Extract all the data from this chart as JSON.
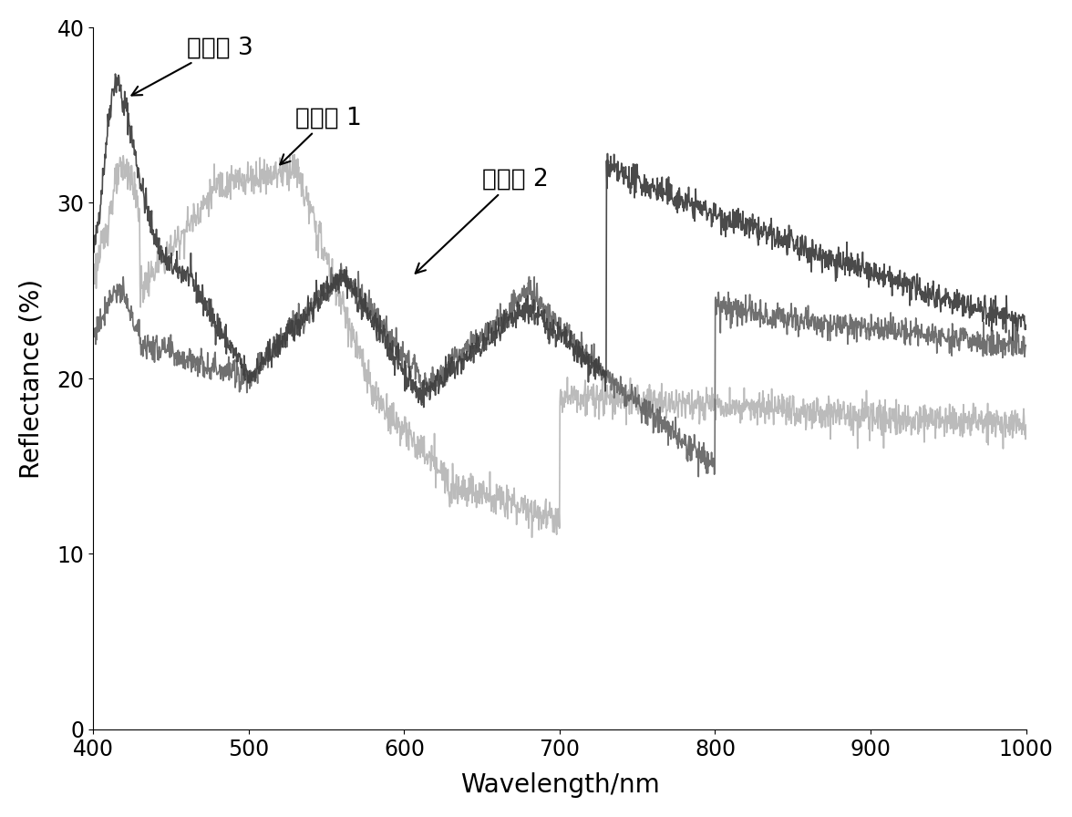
{
  "title": "",
  "xlabel": "Wavelength/nm",
  "ylabel": "Reflectance (%)",
  "xlim": [
    400,
    1000
  ],
  "ylim": [
    0,
    40
  ],
  "yticks": [
    0,
    10,
    20,
    30,
    40
  ],
  "xticks": [
    400,
    500,
    600,
    700,
    800,
    900,
    1000
  ],
  "background_color": "#ffffff",
  "curve1_label": "实施例 3",
  "curve2_label": "实施例 1",
  "curve3_label": "实施例 2",
  "curve1_color": "#404040",
  "curve2_color": "#b0b0b0",
  "curve3_color": "#606060",
  "noise_seed1": 42,
  "noise_seed2": 123,
  "noise_seed3": 77
}
